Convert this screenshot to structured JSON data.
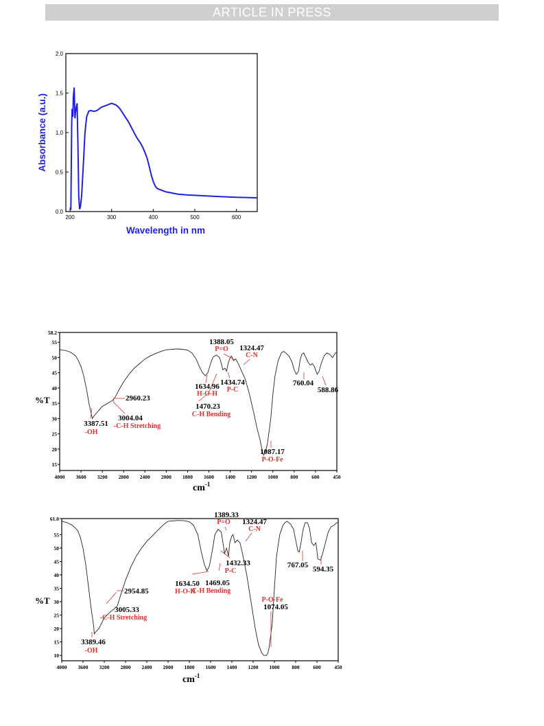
{
  "banner": "ARTICLE IN PRESS",
  "chart_data": [
    {
      "type": "line",
      "xlabel": "Wavelength in nm",
      "ylabel": "Absorbance (a.u.)",
      "xlim": [
        190,
        650
      ],
      "ylim": [
        0,
        2.0
      ],
      "xticks": [
        200,
        300,
        400,
        500,
        600
      ],
      "yticks": [
        "0.0",
        "0.5",
        "1.0",
        "1.5",
        "2.0"
      ],
      "color": "#1f1fe0",
      "series": [
        {
          "x": [
            200,
            202,
            204,
            205,
            207,
            208,
            210,
            212,
            213,
            215,
            217,
            219,
            221,
            223,
            225,
            228,
            232,
            236,
            240,
            245,
            250,
            255,
            260,
            265,
            270,
            275,
            280,
            285,
            290,
            295,
            300,
            305,
            310,
            315,
            320,
            325,
            330,
            335,
            340,
            345,
            350,
            355,
            360,
            365,
            370,
            375,
            380,
            385,
            390,
            395,
            400,
            405,
            410,
            415,
            420,
            430,
            440,
            450,
            460,
            480,
            500,
            520,
            540,
            560,
            580,
            600,
            620,
            640,
            650
          ],
          "y": [
            0.05,
            0.02,
            1.1,
            1.3,
            1.2,
            1.45,
            1.57,
            1.18,
            1.25,
            1.32,
            1.37,
            0.85,
            0.2,
            0.03,
            0.06,
            0.2,
            0.6,
            1.0,
            1.2,
            1.27,
            1.28,
            1.27,
            1.27,
            1.28,
            1.3,
            1.32,
            1.33,
            1.34,
            1.35,
            1.36,
            1.37,
            1.36,
            1.35,
            1.33,
            1.3,
            1.26,
            1.22,
            1.18,
            1.14,
            1.09,
            1.04,
            0.99,
            0.94,
            0.9,
            0.86,
            0.81,
            0.75,
            0.68,
            0.58,
            0.47,
            0.38,
            0.32,
            0.29,
            0.28,
            0.27,
            0.25,
            0.24,
            0.23,
            0.22,
            0.21,
            0.205,
            0.2,
            0.195,
            0.19,
            0.185,
            0.18,
            0.178,
            0.175,
            0.174
          ]
        }
      ]
    },
    {
      "type": "line",
      "xlabel": "cm",
      "xlabel_sup": "-1",
      "ylabel": "%T",
      "xlim": [
        4000,
        450
      ],
      "ylim": [
        13,
        58.2
      ],
      "xticks": [
        4000,
        3600,
        3200,
        2800,
        2400,
        2000,
        1800,
        1600,
        1400,
        1200,
        1000,
        800,
        600,
        450
      ],
      "yticks": [
        "15",
        "20",
        "25",
        "30",
        "35",
        "40",
        "45",
        "50",
        "55",
        "58.2"
      ],
      "series": [
        {
          "x": [
            4000,
            3900,
            3800,
            3700,
            3650,
            3600,
            3550,
            3500,
            3450,
            3400,
            3387,
            3350,
            3300,
            3250,
            3200,
            3100,
            3004,
            2960,
            2900,
            2800,
            2700,
            2600,
            2500,
            2400,
            2300,
            2200,
            2100,
            2000,
            1900,
            1850,
            1800,
            1760,
            1720,
            1690,
            1660,
            1634,
            1610,
            1580,
            1560,
            1530,
            1500,
            1480,
            1470,
            1450,
            1434,
            1420,
            1400,
            1388,
            1370,
            1350,
            1324,
            1300,
            1260,
            1220,
            1180,
            1150,
            1120,
            1100,
            1087,
            1070,
            1050,
            1020,
            1000,
            980,
            950,
            920,
            900,
            880,
            850,
            820,
            800,
            780,
            760,
            745,
            730,
            710,
            690,
            670,
            650,
            630,
            610,
            600,
            588,
            575,
            560,
            540,
            520,
            500,
            480,
            460,
            450
          ],
          "y": [
            52.5,
            52.3,
            51.8,
            50.5,
            49,
            47,
            44,
            40,
            35,
            31,
            30,
            31,
            32,
            33,
            34,
            35,
            36,
            37,
            39,
            42,
            44.5,
            46.5,
            48,
            49.5,
            50.5,
            51.3,
            52,
            52.5,
            52.8,
            52.7,
            52.4,
            51.5,
            49.5,
            47,
            45,
            44,
            45,
            48.5,
            50.2,
            50.8,
            50,
            47.5,
            46,
            46.5,
            45.5,
            48,
            50,
            50.5,
            49,
            49.5,
            48,
            46,
            43,
            38,
            32,
            27,
            23,
            19.5,
            18,
            19,
            22,
            30,
            38,
            44,
            49,
            51.5,
            52,
            51.5,
            50.5,
            48.5,
            46,
            44.5,
            45.5,
            49,
            51,
            51.5,
            50,
            48.5,
            47.5,
            48,
            47,
            46,
            44.5,
            45.5,
            48,
            50.5,
            51.5,
            51,
            50,
            51.5,
            51.5
          ]
        }
      ],
      "annotations": [
        {
          "value": "1388.05",
          "label": "P=O"
        },
        {
          "value": "1324.47",
          "label": "C-N"
        },
        {
          "value": "1634.96",
          "label": "H-O-H"
        },
        {
          "value": "1434.74",
          "label": "P-C"
        },
        {
          "value": "760.04",
          "label": ""
        },
        {
          "value": "588.86",
          "label": ""
        },
        {
          "value": "2960.23",
          "label": ""
        },
        {
          "value": "3004.04",
          "label": "-C-H Stretching"
        },
        {
          "value": "1470.23",
          "label": "C-H Bending"
        },
        {
          "value": "3387.51",
          "label": "-OH"
        },
        {
          "value": "1087.17",
          "label": "P-O-Fe"
        }
      ]
    },
    {
      "type": "line",
      "xlabel": "cm",
      "xlabel_sup": "-1",
      "ylabel": "%T",
      "xlim": [
        4000,
        450
      ],
      "ylim": [
        8,
        61.0
      ],
      "xticks": [
        4000,
        3600,
        3200,
        2800,
        2400,
        2000,
        1800,
        1600,
        1400,
        1200,
        1000,
        800,
        600,
        450
      ],
      "yticks": [
        "10",
        "15",
        "20",
        "25",
        "30",
        "35",
        "40",
        "45",
        "50",
        "55",
        "61.0"
      ],
      "series": [
        {
          "x": [
            4000,
            3900,
            3800,
            3700,
            3650,
            3600,
            3550,
            3500,
            3450,
            3400,
            3389,
            3350,
            3300,
            3250,
            3200,
            3100,
            3005,
            2954,
            2900,
            2800,
            2700,
            2600,
            2500,
            2400,
            2300,
            2200,
            2100,
            2000,
            1900,
            1850,
            1800,
            1760,
            1720,
            1690,
            1660,
            1634,
            1610,
            1580,
            1560,
            1530,
            1500,
            1480,
            1469,
            1450,
            1432,
            1420,
            1400,
            1389,
            1370,
            1350,
            1324,
            1300,
            1260,
            1220,
            1180,
            1150,
            1120,
            1100,
            1074,
            1060,
            1050,
            1020,
            1000,
            980,
            950,
            920,
            900,
            880,
            850,
            820,
            800,
            780,
            767,
            750,
            730,
            710,
            690,
            670,
            650,
            630,
            610,
            600,
            594,
            575,
            560,
            540,
            520,
            500,
            480,
            460,
            450
          ],
          "y": [
            60,
            59.5,
            58.5,
            56.5,
            54,
            50,
            44,
            36,
            28,
            21,
            18,
            19,
            20,
            22,
            24,
            26,
            27.5,
            28.5,
            32,
            38,
            43,
            47,
            50,
            52.5,
            54.5,
            56.5,
            58.5,
            60,
            60.3,
            60.2,
            59.8,
            58.5,
            55,
            49,
            44,
            41.5,
            43.5,
            50,
            55,
            57,
            56,
            51,
            48,
            50,
            47,
            52,
            54.5,
            55,
            52,
            53,
            52,
            48,
            40,
            30,
            20,
            14,
            11,
            10,
            10,
            11,
            13,
            22,
            35,
            47,
            55,
            58.5,
            59.5,
            60,
            59,
            57,
            53,
            49,
            48.5,
            52,
            57,
            59.5,
            59.5,
            57.5,
            52,
            51,
            52,
            49,
            46,
            45.5,
            48,
            52,
            56,
            58,
            58.5,
            59.5,
            59.5
          ]
        }
      ],
      "annotations": [
        {
          "value": "1389.33",
          "label": "P=O"
        },
        {
          "value": "1324.47",
          "label": "C-N"
        },
        {
          "value": "767.05",
          "label": ""
        },
        {
          "value": "594.35",
          "label": ""
        },
        {
          "value": "1432.33",
          "label": "P-C"
        },
        {
          "value": "1634.50",
          "label": "H-O-H"
        },
        {
          "value": "1469.05",
          "label": "C-H Bending"
        },
        {
          "value": "2954.85",
          "label": ""
        },
        {
          "value": "3005.33",
          "label": "-C-H Stretching"
        },
        {
          "value": "1074.05",
          "label": "P-O-Fe"
        },
        {
          "value": "3389.46",
          "label": "-OH"
        }
      ]
    }
  ]
}
